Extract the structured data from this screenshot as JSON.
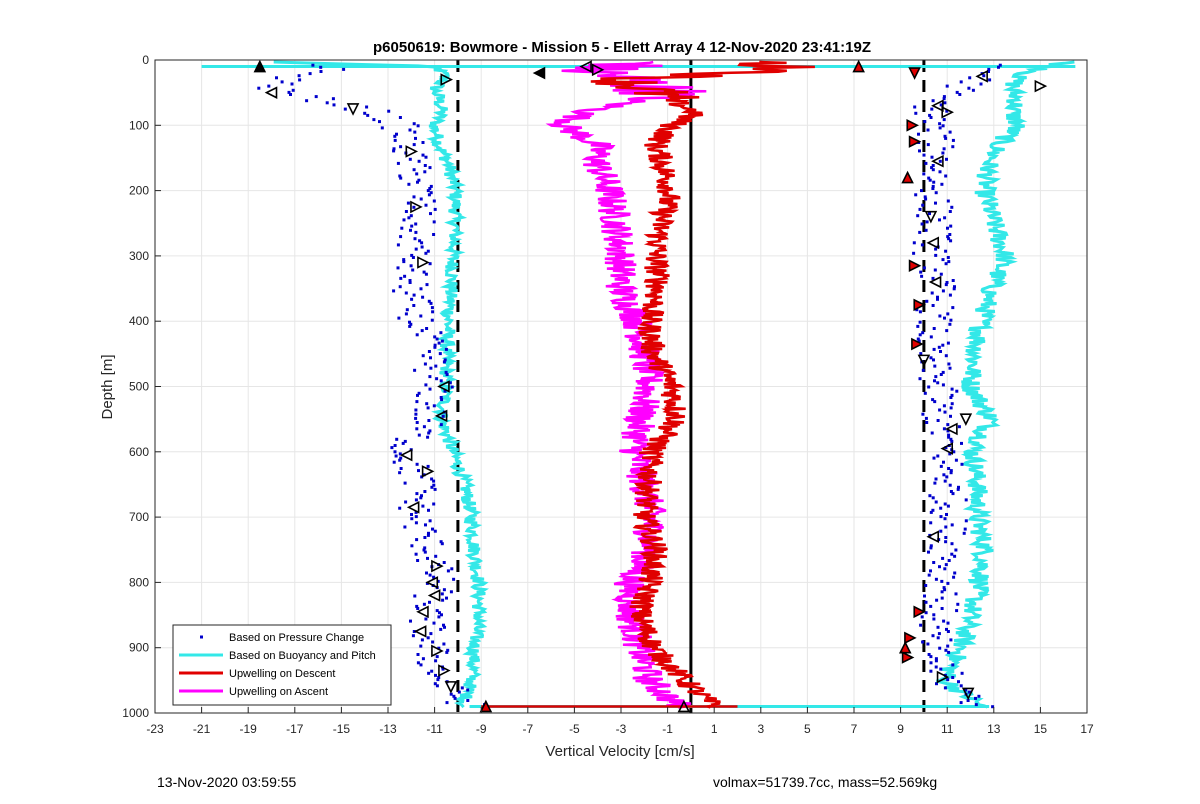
{
  "chart_data": {
    "type": "scatter",
    "title": "p6050619: Bowmore - Mission 5 - Ellett Array 4 12-Nov-2020 23:41:19Z",
    "xlabel": "Vertical Velocity [cm/s]",
    "ylabel": "Depth [m]",
    "xlim": [
      -23,
      17
    ],
    "ylim": [
      1000,
      0
    ],
    "y_reversed": true,
    "grid": true,
    "legend_position": "bottom-left",
    "xticks": [
      -23,
      -21,
      -19,
      -17,
      -15,
      -13,
      -11,
      -9,
      -7,
      -5,
      -3,
      -1,
      1,
      3,
      5,
      7,
      9,
      11,
      13,
      15,
      17
    ],
    "yticks": [
      0,
      100,
      200,
      300,
      400,
      500,
      600,
      700,
      800,
      900,
      1000
    ],
    "reference_lines": [
      {
        "x": -10,
        "style": "dashed",
        "color": "#000000"
      },
      {
        "x": 10,
        "style": "dashed",
        "color": "#000000"
      },
      {
        "x": 0,
        "style": "solid",
        "color": "#000000"
      }
    ],
    "series": [
      {
        "name": "Based on Pressure Change",
        "marker": "dot",
        "color": "#0000cc",
        "depth": [
          0,
          10,
          25,
          45,
          60,
          80,
          100,
          130,
          160,
          200,
          250,
          300,
          350,
          400,
          450,
          500,
          550,
          600,
          650,
          700,
          750,
          800,
          850,
          900,
          950,
          990
        ],
        "descent_x": [
          -22,
          -15,
          -17,
          -18,
          -16,
          -13.5,
          -12.5,
          -12.2,
          -12.0,
          -11.6,
          -11.8,
          -11.9,
          -12.1,
          -11.7,
          -11.2,
          -11.0,
          -11.3,
          -12.3,
          -11.6,
          -11.8,
          -11.2,
          -10.9,
          -11.4,
          -11.2,
          -10.8,
          -9.5
        ],
        "ascent_x": [
          15.5,
          13.0,
          12.5,
          11.5,
          10.5,
          10.3,
          10.4,
          10.5,
          10.6,
          10.4,
          10.5,
          10.3,
          10.6,
          10.4,
          10.2,
          10.6,
          10.7,
          11.0,
          11.0,
          11.1,
          11.0,
          10.9,
          10.6,
          10.3,
          11.0,
          12.5
        ]
      },
      {
        "name": "Based on Buoyancy and Pitch",
        "marker": "line",
        "color": "#33e8e8",
        "depth": [
          0,
          10,
          25,
          45,
          60,
          80,
          100,
          130,
          160,
          200,
          250,
          300,
          350,
          400,
          450,
          500,
          550,
          600,
          650,
          700,
          750,
          800,
          850,
          900,
          950,
          990
        ],
        "descent_x": [
          -21,
          -11.0,
          -10.5,
          -11.0,
          -10.8,
          -10.7,
          -11.0,
          -10.8,
          -10.4,
          -10.1,
          -10.1,
          -10.2,
          -10.3,
          -10.4,
          -10.5,
          -10.5,
          -10.7,
          -10.2,
          -9.7,
          -9.4,
          -9.3,
          -9.1,
          -9.1,
          -9.3,
          -9.4,
          -9.8
        ],
        "ascent_x": [
          16.5,
          15.5,
          14.0,
          13.8,
          14.0,
          13.8,
          14.0,
          13.2,
          12.8,
          12.6,
          13.0,
          13.5,
          12.9,
          12.5,
          12.2,
          12.0,
          12.9,
          12.1,
          12.3,
          12.3,
          12.6,
          12.4,
          12.0,
          11.6,
          10.9,
          12.5
        ]
      },
      {
        "name": "Upwelling on Descent",
        "marker": "line",
        "color": "#e00000",
        "depth": [
          5,
          15,
          30,
          50,
          80,
          100,
          130,
          160,
          200,
          250,
          300,
          350,
          400,
          450,
          500,
          550,
          600,
          650,
          700,
          750,
          800,
          850,
          900,
          950,
          990
        ],
        "x": [
          3.0,
          4.5,
          -3.0,
          -1.5,
          0.2,
          -0.8,
          -1.5,
          -1.2,
          -0.9,
          -1.3,
          -1.5,
          -1.4,
          -1.8,
          -1.6,
          -0.8,
          -0.6,
          -1.7,
          -1.8,
          -2.0,
          -1.5,
          -1.8,
          -2.2,
          -1.6,
          -0.3,
          1.0
        ]
      },
      {
        "name": "Upwelling on Ascent",
        "marker": "line",
        "color": "#ff00ff",
        "depth": [
          5,
          15,
          30,
          50,
          80,
          100,
          130,
          160,
          200,
          250,
          300,
          350,
          400,
          450,
          500,
          550,
          600,
          650,
          700,
          750,
          800,
          850,
          900,
          950,
          990
        ],
        "x": [
          -2.0,
          -4.5,
          -2.5,
          -1.0,
          -4.5,
          -5.5,
          -4.0,
          -4.0,
          -3.5,
          -3.2,
          -3.0,
          -3.0,
          -2.3,
          -2.0,
          -1.8,
          -2.2,
          -2.4,
          -2.0,
          -1.7,
          -1.8,
          -2.6,
          -2.6,
          -2.2,
          -1.8,
          -0.5
        ]
      }
    ],
    "triangle_markers": [
      {
        "x": -18.5,
        "depth": 10,
        "dir": "up",
        "fill": "#000"
      },
      {
        "x": -18.0,
        "depth": 50,
        "dir": "left",
        "fill": "none"
      },
      {
        "x": -14.5,
        "depth": 75,
        "dir": "down",
        "fill": "none"
      },
      {
        "x": -10.5,
        "depth": 30,
        "dir": "right",
        "fill": "none"
      },
      {
        "x": -6.5,
        "depth": 20,
        "dir": "left",
        "fill": "#000"
      },
      {
        "x": -4.5,
        "depth": 10,
        "dir": "left",
        "fill": "none"
      },
      {
        "x": -4.0,
        "depth": 15,
        "dir": "right",
        "fill": "none"
      },
      {
        "x": 7.2,
        "depth": 10,
        "dir": "up",
        "fill": "#e00000"
      },
      {
        "x": 9.6,
        "depth": 20,
        "dir": "down",
        "fill": "#e00000"
      },
      {
        "x": 12.5,
        "depth": 25,
        "dir": "left",
        "fill": "none"
      },
      {
        "x": 15.0,
        "depth": 40,
        "dir": "right",
        "fill": "none"
      },
      {
        "x": 11.0,
        "depth": 80,
        "dir": "right",
        "fill": "none"
      },
      {
        "x": 10.6,
        "depth": 70,
        "dir": "left",
        "fill": "none"
      },
      {
        "x": 9.5,
        "depth": 100,
        "dir": "right",
        "fill": "#e00000"
      },
      {
        "x": 9.6,
        "depth": 125,
        "dir": "right",
        "fill": "#e00000"
      },
      {
        "x": 10.6,
        "depth": 155,
        "dir": "left",
        "fill": "none"
      },
      {
        "x": 9.3,
        "depth": 180,
        "dir": "up",
        "fill": "#e00000"
      },
      {
        "x": 10.3,
        "depth": 240,
        "dir": "down",
        "fill": "none"
      },
      {
        "x": 10.4,
        "depth": 280,
        "dir": "left",
        "fill": "none"
      },
      {
        "x": 9.6,
        "depth": 315,
        "dir": "right",
        "fill": "#e00000"
      },
      {
        "x": 10.5,
        "depth": 340,
        "dir": "left",
        "fill": "none"
      },
      {
        "x": 9.8,
        "depth": 375,
        "dir": "right",
        "fill": "#e00000"
      },
      {
        "x": 9.7,
        "depth": 435,
        "dir": "right",
        "fill": "#e00000"
      },
      {
        "x": 10.0,
        "depth": 460,
        "dir": "down",
        "fill": "none"
      },
      {
        "x": 11.8,
        "depth": 550,
        "dir": "down",
        "fill": "none"
      },
      {
        "x": 11.2,
        "depth": 565,
        "dir": "left",
        "fill": "none"
      },
      {
        "x": 11.0,
        "depth": 595,
        "dir": "left",
        "fill": "none"
      },
      {
        "x": 10.4,
        "depth": 730,
        "dir": "left",
        "fill": "none"
      },
      {
        "x": 9.8,
        "depth": 845,
        "dir": "right",
        "fill": "#e00000"
      },
      {
        "x": 9.4,
        "depth": 885,
        "dir": "right",
        "fill": "#e00000"
      },
      {
        "x": 9.2,
        "depth": 900,
        "dir": "up",
        "fill": "#e00000"
      },
      {
        "x": 9.3,
        "depth": 915,
        "dir": "right",
        "fill": "#e00000"
      },
      {
        "x": 10.8,
        "depth": 945,
        "dir": "right",
        "fill": "none"
      },
      {
        "x": 11.9,
        "depth": 970,
        "dir": "down",
        "fill": "none"
      },
      {
        "x": -12.0,
        "depth": 140,
        "dir": "right",
        "fill": "none"
      },
      {
        "x": -11.8,
        "depth": 225,
        "dir": "right",
        "fill": "none"
      },
      {
        "x": -11.5,
        "depth": 310,
        "dir": "right",
        "fill": "none"
      },
      {
        "x": -10.6,
        "depth": 500,
        "dir": "left",
        "fill": "none"
      },
      {
        "x": -10.7,
        "depth": 545,
        "dir": "left",
        "fill": "none"
      },
      {
        "x": -12.2,
        "depth": 605,
        "dir": "left",
        "fill": "none"
      },
      {
        "x": -11.3,
        "depth": 630,
        "dir": "right",
        "fill": "none"
      },
      {
        "x": -11.9,
        "depth": 685,
        "dir": "left",
        "fill": "none"
      },
      {
        "x": -10.9,
        "depth": 775,
        "dir": "right",
        "fill": "none"
      },
      {
        "x": -11.1,
        "depth": 800,
        "dir": "left",
        "fill": "none"
      },
      {
        "x": -11.0,
        "depth": 820,
        "dir": "left",
        "fill": "none"
      },
      {
        "x": -11.5,
        "depth": 845,
        "dir": "left",
        "fill": "none"
      },
      {
        "x": -11.6,
        "depth": 875,
        "dir": "left",
        "fill": "none"
      },
      {
        "x": -10.9,
        "depth": 905,
        "dir": "right",
        "fill": "none"
      },
      {
        "x": -10.6,
        "depth": 935,
        "dir": "right",
        "fill": "none"
      },
      {
        "x": -10.3,
        "depth": 960,
        "dir": "down",
        "fill": "none"
      },
      {
        "x": -8.8,
        "depth": 990,
        "dir": "up",
        "fill": "#e00000"
      },
      {
        "x": -0.3,
        "depth": 990,
        "dir": "up",
        "fill": "none"
      }
    ]
  },
  "footer": {
    "timestamp": "13-Nov-2020 03:59:55",
    "volmax_mass": "volmax=51739.7cc, mass=52.569kg"
  }
}
